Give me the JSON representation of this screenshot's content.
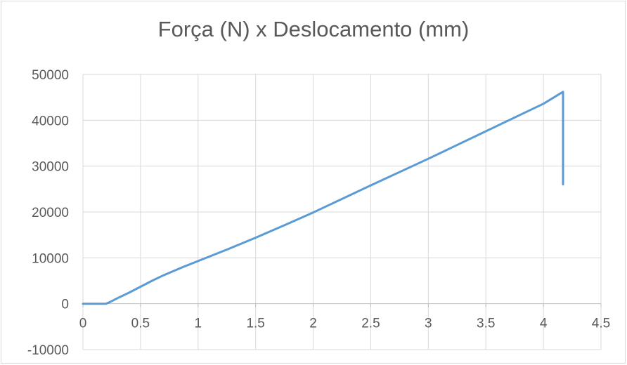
{
  "chart_data": {
    "type": "line",
    "title": "Força (N) x Deslocamento (mm)",
    "xlabel": "",
    "ylabel": "",
    "xlim": [
      0,
      4.5
    ],
    "ylim": [
      -10000,
      50000
    ],
    "x_ticks": [
      "0",
      "0.5",
      "1",
      "1.5",
      "2",
      "2.5",
      "3",
      "3.5",
      "4",
      "4.5"
    ],
    "y_ticks": [
      "50000",
      "40000",
      "30000",
      "20000",
      "10000",
      "0",
      "-10000"
    ],
    "grid": true,
    "legend": "none",
    "series": [
      {
        "color": "#5b9bd5",
        "points": [
          [
            0,
            0
          ],
          [
            0.2,
            0
          ],
          [
            0.23,
            300
          ],
          [
            0.3,
            1200
          ],
          [
            0.4,
            2400
          ],
          [
            0.5,
            3700
          ],
          [
            0.6,
            5000
          ],
          [
            0.7,
            6200
          ],
          [
            0.85,
            7800
          ],
          [
            1.0,
            9300
          ],
          [
            1.25,
            11800
          ],
          [
            1.5,
            14400
          ],
          [
            1.75,
            17100
          ],
          [
            2.0,
            19900
          ],
          [
            2.5,
            25800
          ],
          [
            3.0,
            31600
          ],
          [
            3.5,
            37600
          ],
          [
            4.0,
            43600
          ],
          [
            4.17,
            46200
          ],
          [
            4.17,
            26000
          ]
        ]
      }
    ]
  }
}
